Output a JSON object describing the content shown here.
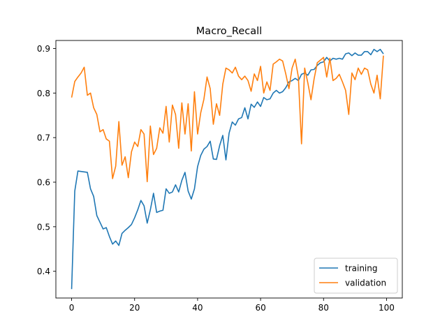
{
  "chart_data": {
    "type": "line",
    "title": "Macro_Recall",
    "xlabel": "",
    "ylabel": "",
    "xlim": [
      -5,
      105
    ],
    "ylim": [
      0.34,
      0.918
    ],
    "xticks": [
      0,
      20,
      40,
      60,
      80,
      100
    ],
    "yticks": [
      0.4,
      0.5,
      0.6,
      0.7,
      0.8,
      0.9
    ],
    "grid": false,
    "legend_position": "lower-right",
    "series": [
      {
        "name": "training",
        "color": "#1f77b4",
        "x": [
          0,
          1,
          2,
          3,
          4,
          5,
          6,
          7,
          8,
          9,
          10,
          11,
          12,
          13,
          14,
          15,
          16,
          17,
          18,
          19,
          20,
          21,
          22,
          23,
          24,
          25,
          26,
          27,
          28,
          29,
          30,
          31,
          32,
          33,
          34,
          35,
          36,
          37,
          38,
          39,
          40,
          41,
          42,
          43,
          44,
          45,
          46,
          47,
          48,
          49,
          50,
          51,
          52,
          53,
          54,
          55,
          56,
          57,
          58,
          59,
          60,
          61,
          62,
          63,
          64,
          65,
          66,
          67,
          68,
          69,
          70,
          71,
          72,
          73,
          74,
          75,
          76,
          77,
          78,
          79,
          80,
          81,
          82,
          83,
          84,
          85,
          86,
          87,
          88,
          89,
          90,
          91,
          92,
          93,
          94,
          95,
          96,
          97,
          98,
          99
        ],
        "y": [
          0.36,
          0.58,
          0.625,
          0.624,
          0.623,
          0.622,
          0.585,
          0.568,
          0.525,
          0.51,
          0.495,
          0.498,
          0.478,
          0.461,
          0.468,
          0.458,
          0.485,
          0.492,
          0.498,
          0.505,
          0.52,
          0.538,
          0.559,
          0.547,
          0.508,
          0.538,
          0.575,
          0.532,
          0.535,
          0.537,
          0.585,
          0.575,
          0.578,
          0.594,
          0.578,
          0.604,
          0.622,
          0.58,
          0.562,
          0.585,
          0.635,
          0.66,
          0.674,
          0.68,
          0.692,
          0.652,
          0.651,
          0.682,
          0.705,
          0.65,
          0.71,
          0.735,
          0.728,
          0.742,
          0.745,
          0.767,
          0.742,
          0.775,
          0.768,
          0.78,
          0.77,
          0.79,
          0.785,
          0.787,
          0.8,
          0.806,
          0.8,
          0.803,
          0.812,
          0.825,
          0.828,
          0.833,
          0.828,
          0.842,
          0.845,
          0.84,
          0.852,
          0.853,
          0.862,
          0.868,
          0.87,
          0.88,
          0.872,
          0.878,
          0.876,
          0.878,
          0.876,
          0.888,
          0.89,
          0.884,
          0.89,
          0.885,
          0.885,
          0.893,
          0.893,
          0.886,
          0.898,
          0.893,
          0.898,
          0.888
        ]
      },
      {
        "name": "validation",
        "color": "#ff7f0e",
        "x": [
          0,
          1,
          2,
          3,
          4,
          5,
          6,
          7,
          8,
          9,
          10,
          11,
          12,
          13,
          14,
          15,
          16,
          17,
          18,
          19,
          20,
          21,
          22,
          23,
          24,
          25,
          26,
          27,
          28,
          29,
          30,
          31,
          32,
          33,
          34,
          35,
          36,
          37,
          38,
          39,
          40,
          41,
          42,
          43,
          44,
          45,
          46,
          47,
          48,
          49,
          50,
          51,
          52,
          53,
          54,
          55,
          56,
          57,
          58,
          59,
          60,
          61,
          62,
          63,
          64,
          65,
          66,
          67,
          68,
          69,
          70,
          71,
          72,
          73,
          74,
          75,
          76,
          77,
          78,
          79,
          80,
          81,
          82,
          83,
          84,
          85,
          86,
          87,
          88,
          89,
          90,
          91,
          92,
          93,
          94,
          95,
          96,
          97,
          98,
          99
        ],
        "y": [
          0.79,
          0.826,
          0.836,
          0.845,
          0.858,
          0.795,
          0.8,
          0.767,
          0.752,
          0.713,
          0.718,
          0.697,
          0.692,
          0.608,
          0.636,
          0.736,
          0.638,
          0.657,
          0.61,
          0.668,
          0.69,
          0.68,
          0.718,
          0.708,
          0.601,
          0.726,
          0.662,
          0.676,
          0.722,
          0.71,
          0.77,
          0.69,
          0.773,
          0.752,
          0.676,
          0.778,
          0.708,
          0.776,
          0.67,
          0.803,
          0.708,
          0.756,
          0.786,
          0.836,
          0.81,
          0.73,
          0.776,
          0.75,
          0.82,
          0.856,
          0.852,
          0.845,
          0.858,
          0.838,
          0.83,
          0.838,
          0.828,
          0.804,
          0.843,
          0.828,
          0.86,
          0.8,
          0.825,
          0.806,
          0.865,
          0.87,
          0.876,
          0.872,
          0.843,
          0.81,
          0.856,
          0.876,
          0.836,
          0.686,
          0.856,
          0.823,
          0.785,
          0.832,
          0.868,
          0.874,
          0.88,
          0.836,
          0.878,
          0.828,
          0.833,
          0.842,
          0.825,
          0.806,
          0.752,
          0.845,
          0.83,
          0.856,
          0.842,
          0.856,
          0.852,
          0.82,
          0.8,
          0.84,
          0.787,
          0.884
        ]
      }
    ]
  }
}
